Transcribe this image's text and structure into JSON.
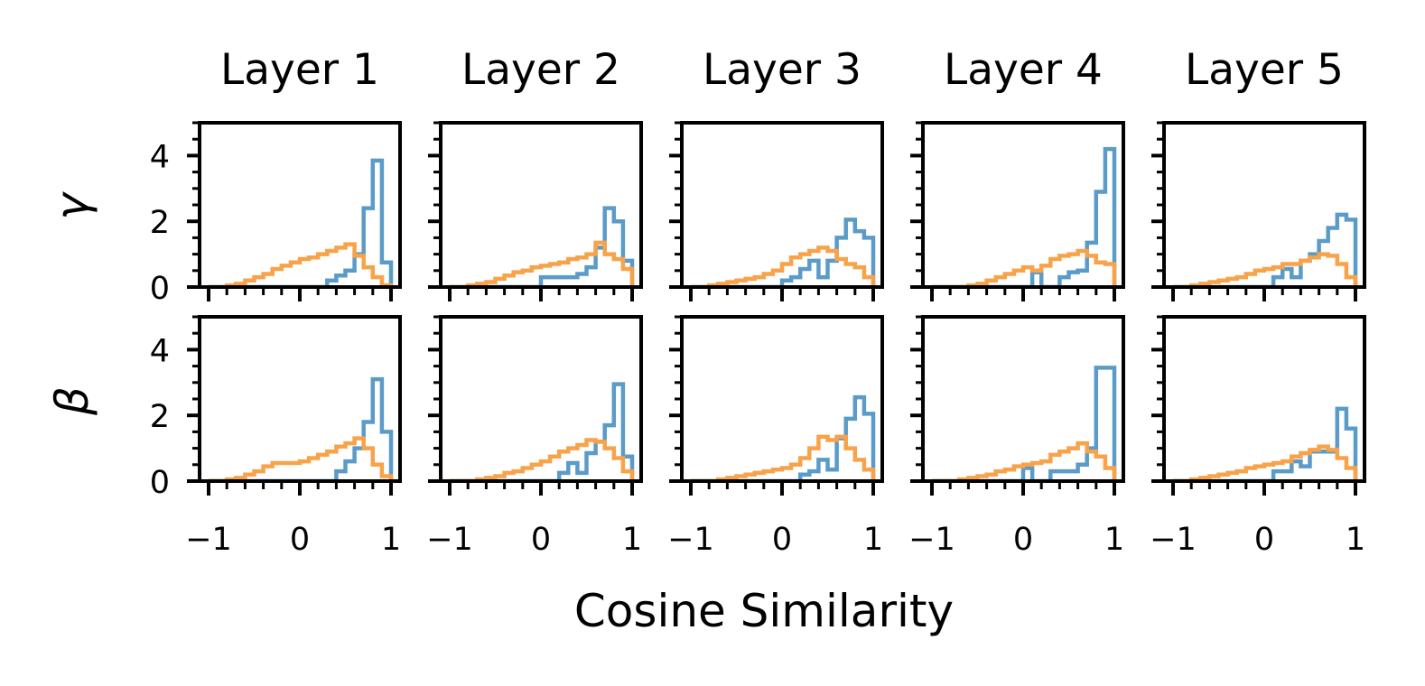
{
  "chart_data": {
    "type": "histogram-grid",
    "layout": {
      "rows": 2,
      "cols": 5
    },
    "column_titles": [
      "Layer 1",
      "Layer 2",
      "Layer 3",
      "Layer 4",
      "Layer 5"
    ],
    "row_labels": [
      "γ",
      "β"
    ],
    "xlabel": "Cosine Similarity",
    "xlim": [
      -1.0,
      1.0
    ],
    "ylim": [
      0,
      5
    ],
    "x_ticks": [
      -1,
      0,
      1
    ],
    "x_tick_labels": [
      "−1",
      "0",
      "1"
    ],
    "y_ticks": [
      0,
      2,
      4
    ],
    "y_tick_labels": [
      "0",
      "2",
      "4"
    ],
    "bin_edges": [
      -1.0,
      -0.9,
      -0.8,
      -0.7,
      -0.6,
      -0.5,
      -0.4,
      -0.3,
      -0.2,
      -0.1,
      0.0,
      0.1,
      0.2,
      0.3,
      0.4,
      0.5,
      0.6,
      0.7,
      0.8,
      0.9,
      1.0
    ],
    "colors": {
      "blue": "#5b9bc8",
      "orange": "#f8a24a"
    },
    "panels": [
      {
        "row": 0,
        "col": 0,
        "blue": [
          0,
          0,
          0,
          0,
          0,
          0,
          0,
          0,
          0,
          0,
          0,
          0,
          0,
          0.2,
          0.35,
          0.5,
          1.0,
          2.4,
          3.85,
          0.75
        ],
        "orange": [
          0,
          0,
          0.05,
          0.1,
          0.2,
          0.3,
          0.4,
          0.55,
          0.65,
          0.75,
          0.85,
          0.9,
          1.0,
          1.1,
          1.2,
          1.3,
          0.95,
          0.6,
          0.3,
          0.05
        ]
      },
      {
        "row": 0,
        "col": 1,
        "blue": [
          0,
          0,
          0,
          0,
          0,
          0,
          0,
          0,
          0,
          0,
          0.3,
          0.3,
          0.3,
          0.3,
          0.4,
          0.6,
          1.2,
          2.4,
          2.0,
          0.8
        ],
        "orange": [
          0,
          0,
          0.05,
          0.1,
          0.15,
          0.25,
          0.35,
          0.45,
          0.5,
          0.6,
          0.65,
          0.7,
          0.75,
          0.85,
          0.9,
          1.0,
          1.35,
          1.0,
          0.85,
          0.55
        ]
      },
      {
        "row": 0,
        "col": 2,
        "blue": [
          0,
          0,
          0,
          0,
          0,
          0,
          0,
          0,
          0,
          0,
          0.2,
          0.3,
          0.55,
          0.8,
          0.3,
          0.8,
          1.5,
          2.05,
          1.7,
          1.5
        ],
        "orange": [
          0,
          0,
          0.05,
          0.1,
          0.15,
          0.2,
          0.25,
          0.3,
          0.4,
          0.5,
          0.7,
          0.9,
          1.0,
          1.1,
          1.2,
          1.1,
          0.85,
          0.7,
          0.6,
          0.3
        ]
      },
      {
        "row": 0,
        "col": 3,
        "blue": [
          0,
          0,
          0,
          0,
          0,
          0,
          0,
          0,
          0,
          0,
          0,
          0.45,
          0,
          0,
          0.3,
          0.45,
          0.5,
          1.35,
          2.9,
          4.2
        ],
        "orange": [
          0,
          0,
          0,
          0,
          0.05,
          0.1,
          0.2,
          0.3,
          0.4,
          0.5,
          0.6,
          0.5,
          0.65,
          0.85,
          0.95,
          1.0,
          1.1,
          0.95,
          0.75,
          0.7
        ]
      },
      {
        "row": 0,
        "col": 4,
        "blue": [
          0,
          0,
          0,
          0,
          0,
          0,
          0,
          0,
          0,
          0,
          0,
          0.3,
          0.55,
          0.3,
          0.8,
          1.0,
          1.4,
          1.8,
          2.2,
          2.05
        ],
        "orange": [
          0,
          0,
          0.05,
          0.1,
          0.15,
          0.2,
          0.25,
          0.3,
          0.4,
          0.5,
          0.55,
          0.6,
          0.7,
          0.7,
          0.8,
          0.9,
          1.0,
          0.95,
          0.7,
          0.3
        ]
      },
      {
        "row": 1,
        "col": 0,
        "blue": [
          0,
          0,
          0,
          0,
          0,
          0,
          0,
          0,
          0,
          0,
          0,
          0,
          0,
          0,
          0.3,
          0.6,
          1.0,
          1.8,
          3.1,
          1.5
        ],
        "orange": [
          0,
          0,
          0.05,
          0.1,
          0.2,
          0.3,
          0.45,
          0.55,
          0.55,
          0.55,
          0.6,
          0.7,
          0.8,
          0.9,
          1.05,
          1.15,
          1.3,
          1.0,
          0.5,
          0.15
        ]
      },
      {
        "row": 1,
        "col": 1,
        "blue": [
          0,
          0,
          0,
          0,
          0,
          0,
          0,
          0,
          0,
          0,
          0,
          0,
          0.25,
          0.55,
          0.25,
          0.85,
          1.2,
          1.7,
          2.95,
          0.75
        ],
        "orange": [
          0,
          0,
          0,
          0.05,
          0.1,
          0.15,
          0.25,
          0.3,
          0.4,
          0.5,
          0.6,
          0.75,
          0.9,
          1.0,
          1.1,
          1.25,
          1.2,
          1.0,
          0.7,
          0.3
        ]
      },
      {
        "row": 1,
        "col": 2,
        "blue": [
          0,
          0,
          0,
          0,
          0,
          0,
          0,
          0,
          0,
          0,
          0,
          0,
          0.2,
          0.3,
          0.65,
          0.35,
          1.3,
          1.9,
          2.55,
          2.05
        ],
        "orange": [
          0,
          0,
          0,
          0.05,
          0.1,
          0.15,
          0.2,
          0.25,
          0.3,
          0.35,
          0.4,
          0.5,
          0.7,
          1.0,
          1.35,
          1.25,
          1.35,
          1.0,
          0.65,
          0.35
        ]
      },
      {
        "row": 1,
        "col": 3,
        "blue": [
          0,
          0,
          0,
          0,
          0,
          0,
          0,
          0,
          0,
          0,
          0.4,
          0,
          0,
          0.3,
          0.3,
          0.3,
          0.5,
          1.0,
          3.45,
          3.45
        ],
        "orange": [
          0,
          0,
          0,
          0.05,
          0.1,
          0.15,
          0.2,
          0.3,
          0.35,
          0.45,
          0.5,
          0.55,
          0.6,
          0.8,
          0.9,
          1.0,
          1.15,
          0.9,
          0.75,
          0.4
        ]
      },
      {
        "row": 1,
        "col": 4,
        "blue": [
          0,
          0,
          0,
          0,
          0,
          0,
          0,
          0,
          0,
          0,
          0,
          0.3,
          0.3,
          0.6,
          0.45,
          0.9,
          0.9,
          0.9,
          2.2,
          1.6
        ],
        "orange": [
          0,
          0,
          0.05,
          0.1,
          0.15,
          0.2,
          0.25,
          0.3,
          0.4,
          0.45,
          0.5,
          0.55,
          0.6,
          0.75,
          0.85,
          0.95,
          1.05,
          0.95,
          0.7,
          0.4
        ]
      }
    ]
  }
}
